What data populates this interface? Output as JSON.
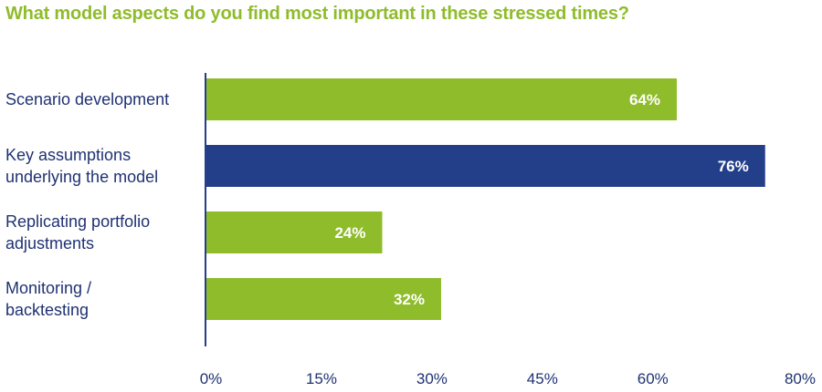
{
  "chart_data": {
    "type": "bar",
    "orientation": "horizontal",
    "title": "What model aspects do you find most important in these stressed times?",
    "categories": [
      [
        "Scenario development"
      ],
      [
        "Key assumptions",
        "underlying the model"
      ],
      [
        "Replicating portfolio",
        "adjustments"
      ],
      [
        "Monitoring /",
        "backtesting"
      ]
    ],
    "values": [
      64,
      76,
      24,
      32
    ],
    "data_labels": [
      "64%",
      "76%",
      "24%",
      "32%"
    ],
    "highlighted_index": 1,
    "xlim": [
      0,
      80
    ],
    "ticks": [
      0,
      15,
      30,
      45,
      60,
      80
    ],
    "tick_labels": [
      "0%",
      "15%",
      "30%",
      "45%",
      "60%",
      "80%"
    ],
    "grid": false,
    "legend": "none",
    "colors": {
      "title": "#8fbc2b",
      "bar": "#8fbc2b",
      "bar_highlight": "#233f8a",
      "axis": "#233f8a",
      "text": "#1f3272",
      "data_label": "#ffffff"
    }
  }
}
